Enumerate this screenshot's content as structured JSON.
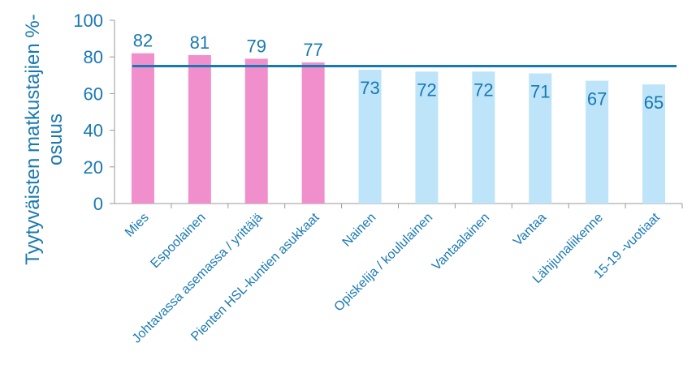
{
  "chart_data": {
    "type": "bar",
    "categories": [
      "Mies",
      "Espoolainen",
      "Johtavassa asemassa / yrittäjä",
      "Pienten HSL-kuntien asukkaat",
      "Nainen",
      "Opiskelija / koululainen",
      "Vantaalainen",
      "Vantaa",
      "Lähijunaliikenne",
      "15-19 -vuotiaat"
    ],
    "values": [
      82,
      81,
      79,
      77,
      73,
      72,
      72,
      71,
      67,
      65
    ],
    "bar_groups": [
      "high",
      "high",
      "high",
      "high",
      "low",
      "low",
      "low",
      "low",
      "low",
      "low"
    ],
    "reference_line": 75,
    "ylabel": "Tyytyväisten matkustajien %-osuus",
    "ylabel_lines": [
      "Tyytyväisten matkustajien %-",
      "osuus"
    ],
    "ylim": [
      0,
      100
    ],
    "yticks": [
      "0",
      "20",
      "40",
      "60",
      "80",
      "100"
    ],
    "grid": false,
    "colors": {
      "high": "#f08fcb",
      "low": "#bde4f8",
      "line": "#1878b4",
      "text": "#1878b4",
      "axis": "#9a9a9a"
    }
  }
}
